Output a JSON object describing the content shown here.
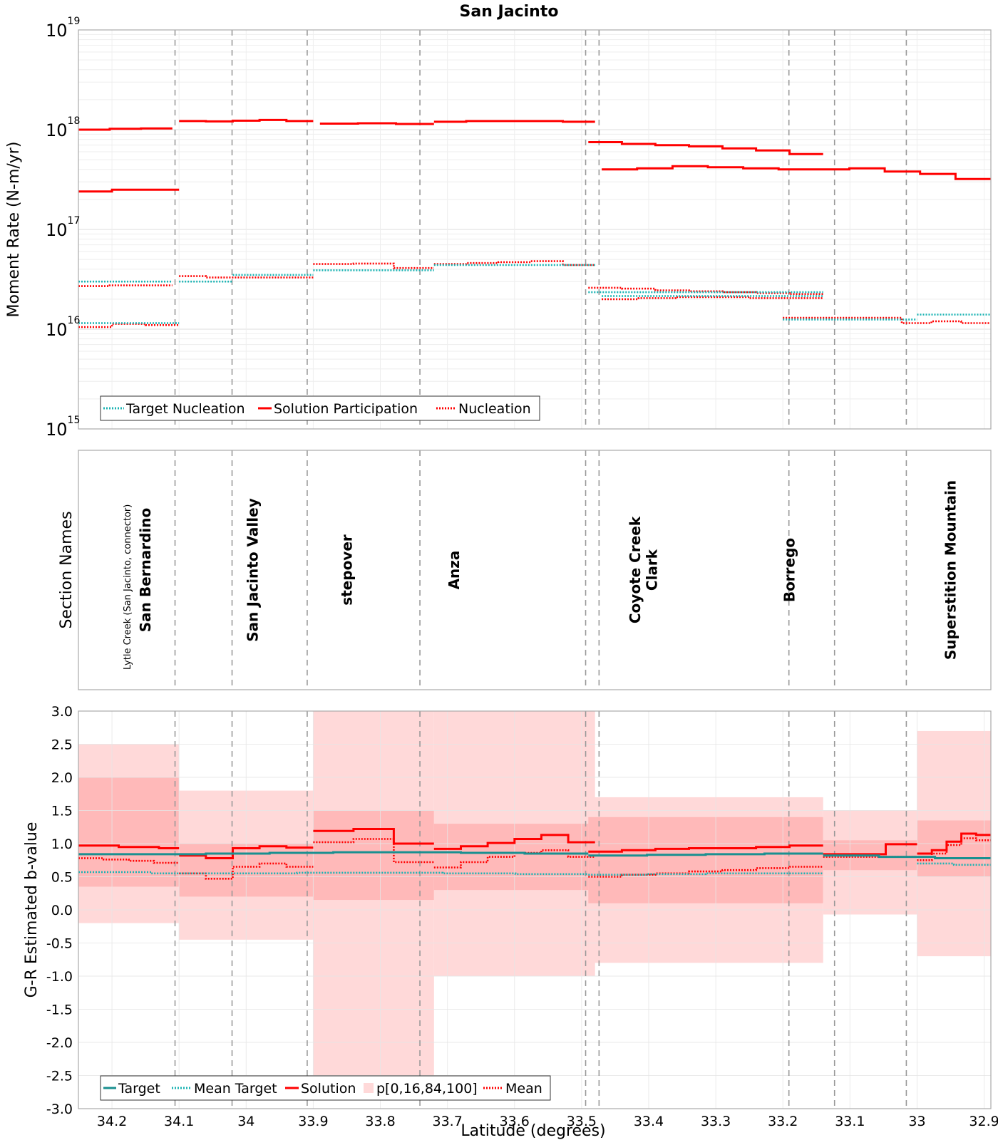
{
  "chart_data": [
    {
      "panel": "moment-rate",
      "type": "line",
      "title": "San Jacinto",
      "ylabel": "Moment Rate (N-m/yr)",
      "xlabel": "",
      "yscale": "log",
      "ylim": [
        1000000000000000.0,
        1e+19
      ],
      "xlim": [
        34.25,
        32.89
      ],
      "x_reversed": true,
      "y_ticks": [
        {
          "base": "10",
          "exp": "15",
          "value": 1000000000000000.0
        },
        {
          "base": "10",
          "exp": "16",
          "value": 1e+16
        },
        {
          "base": "10",
          "exp": "17",
          "value": 1e+17
        },
        {
          "base": "10",
          "exp": "18",
          "value": 1e+18
        },
        {
          "base": "10",
          "exp": "19",
          "value": 1e+19
        }
      ],
      "grid": true,
      "legend": {
        "position": "bottom-left",
        "entries": [
          {
            "label": "Target Nucleation",
            "style": "dotted",
            "color": "#1ab3b3"
          },
          {
            "label": "Solution Participation",
            "style": "solid",
            "color": "#ff0000"
          },
          {
            "label": "Nucleation",
            "style": "dotted",
            "color": "#ff0000"
          }
        ]
      },
      "series": [
        {
          "name": "Solution Participation",
          "style": "solid",
          "color": "#ff0000",
          "segments": [
            {
              "x0": 34.25,
              "x1": 34.11,
              "y": [
                1e+18,
                1.02e+18,
                1.03e+18
              ]
            },
            {
              "x0": 34.25,
              "x1": 34.1,
              "y": [
                2.4e+17,
                2.5e+17,
                2.5e+17
              ]
            },
            {
              "x0": 34.1,
              "x1": 33.9,
              "y": [
                1.22e+18,
                1.21e+18,
                1.23e+18,
                1.25e+18,
                1.22e+18
              ]
            },
            {
              "x0": 33.89,
              "x1": 33.72,
              "y": [
                1.15e+18,
                1.16e+18,
                1.14e+18
              ]
            },
            {
              "x0": 33.72,
              "x1": 33.48,
              "y": [
                1.2e+18,
                1.22e+18,
                1.22e+18,
                1.22e+18,
                1.2e+18
              ]
            },
            {
              "x0": 33.49,
              "x1": 33.14,
              "y": [
                7.5e+17,
                7.2e+17,
                7e+17,
                6.8e+17,
                6.5e+17,
                6.2e+17,
                5.7e+17
              ]
            },
            {
              "x0": 33.47,
              "x1": 32.89,
              "y": [
                4e+17,
                4.1e+17,
                4.3e+17,
                4.2e+17,
                4.1e+17,
                4e+17,
                4e+17,
                4.1e+17,
                3.8e+17,
                3.6e+17,
                3.2e+17
              ]
            }
          ]
        },
        {
          "name": "Nucleation",
          "style": "dotted",
          "color": "#ff0000",
          "segments": [
            {
              "x0": 34.25,
              "x1": 34.11,
              "y": [
                2.7e+16,
                2.75e+16,
                2.75e+16
              ]
            },
            {
              "x0": 34.25,
              "x1": 34.1,
              "y": [
                1.05e+16,
                1.13e+16,
                1.1e+16
              ]
            },
            {
              "x0": 34.1,
              "x1": 33.9,
              "y": [
                3.4e+16,
                3.3e+16,
                3.3e+16,
                3.3e+16,
                3.3e+16
              ]
            },
            {
              "x0": 33.9,
              "x1": 33.72,
              "y": [
                4.5e+16,
                4.55e+16,
                4.1e+16
              ]
            },
            {
              "x0": 33.72,
              "x1": 33.48,
              "y": [
                4.5e+16,
                4.6e+16,
                4.7e+16,
                4.8e+16,
                4.4e+16
              ]
            },
            {
              "x0": 33.49,
              "x1": 33.14,
              "y": [
                2.6e+16,
                2.55e+16,
                2.45e+16,
                2.4e+16,
                2.35e+16,
                2.3e+16,
                2.25e+16
              ]
            },
            {
              "x0": 33.47,
              "x1": 33.14,
              "y": [
                2e+16,
                2.05e+16,
                2.1e+16,
                2.1e+16,
                2.05e+16,
                2.05e+16
              ]
            },
            {
              "x0": 33.2,
              "x1": 32.89,
              "y": [
                1.3e+16,
                1.3e+16,
                1.3e+16,
                1.3e+16,
                1.15e+16,
                1.2e+16,
                1.15e+16
              ]
            }
          ]
        },
        {
          "name": "Target Nucleation",
          "style": "dotted",
          "color": "#1ab3b3",
          "segments": [
            {
              "x0": 34.25,
              "x1": 34.11,
              "y": [
                3e+16
              ]
            },
            {
              "x0": 34.25,
              "x1": 34.1,
              "y": [
                1.15e+16
              ]
            },
            {
              "x0": 34.1,
              "x1": 34.02,
              "y": [
                3e+16
              ]
            },
            {
              "x0": 34.02,
              "x1": 33.9,
              "y": [
                3.5e+16
              ]
            },
            {
              "x0": 33.9,
              "x1": 33.72,
              "y": [
                3.9e+16
              ]
            },
            {
              "x0": 33.72,
              "x1": 33.48,
              "y": [
                4.4e+16
              ]
            },
            {
              "x0": 33.49,
              "x1": 33.14,
              "y": [
                2.35e+16
              ]
            },
            {
              "x0": 33.47,
              "x1": 33.14,
              "y": [
                2.15e+16
              ]
            },
            {
              "x0": 33.2,
              "x1": 33.0,
              "y": [
                1.25e+16
              ]
            },
            {
              "x0": 33.0,
              "x1": 32.89,
              "y": [
                1.4e+16
              ]
            }
          ]
        }
      ]
    },
    {
      "panel": "section-names",
      "type": "table",
      "ylabel": "Section Names",
      "sections": [
        {
          "name": "Lytle Creek (San Jacinto, connector)",
          "x": 34.18,
          "small": true
        },
        {
          "name": "San Bernardino",
          "x": 34.15,
          "small": false
        },
        {
          "name": "San Jacinto Valley",
          "x": 33.99,
          "small": false
        },
        {
          "name": "stepover",
          "x": 33.85,
          "small": false
        },
        {
          "name": "Anza",
          "x": 33.69,
          "small": false
        },
        {
          "name": "Coyote Creek",
          "x": 33.42,
          "small": false
        },
        {
          "name": "Clark",
          "x": 33.395,
          "small": false
        },
        {
          "name": "Borrego",
          "x": 33.19,
          "small": false
        },
        {
          "name": "Superstition Mountain",
          "x": 32.95,
          "small": false
        }
      ]
    },
    {
      "panel": "b-value",
      "type": "line",
      "title": "",
      "ylabel": "G-R Estimated b-value",
      "xlabel": "Latitude (degrees)",
      "ylim": [
        -3.0,
        3.0
      ],
      "xlim": [
        34.25,
        32.89
      ],
      "x_reversed": true,
      "y_ticks": [
        "3.0",
        "2.5",
        "2.0",
        "1.5",
        "1.0",
        "0.5",
        "0.0",
        "-0.5",
        "-1.0",
        "-1.5",
        "-2.0",
        "-2.5",
        "-3.0"
      ],
      "grid": true,
      "legend": {
        "position": "bottom-left",
        "entries": [
          {
            "label": "Target",
            "style": "solid",
            "color": "#1a9090"
          },
          {
            "label": "Mean Target",
            "style": "dotted",
            "color": "#1ab3b3"
          },
          {
            "label": "Solution",
            "style": "solid",
            "color": "#ff0000"
          },
          {
            "label": "p[0,16,84,100]",
            "style": "fill",
            "color": "#ffd9d9"
          },
          {
            "label": "Mean",
            "style": "dotted",
            "color": "#ff0000"
          }
        ]
      },
      "bands": [
        {
          "x0": 34.25,
          "x1": 34.1,
          "p0": -0.2,
          "p16": 0.35,
          "p84": 2.0,
          "p100": 2.5
        },
        {
          "x0": 34.1,
          "x1": 33.9,
          "p0": -0.45,
          "p16": 0.2,
          "p84": 1.0,
          "p100": 1.8
        },
        {
          "x0": 33.9,
          "x1": 33.72,
          "p0": -2.8,
          "p16": 0.15,
          "p84": 1.5,
          "p100": 3.0
        },
        {
          "x0": 33.72,
          "x1": 33.48,
          "p0": -1.0,
          "p16": 0.3,
          "p84": 1.3,
          "p100": 3.0
        },
        {
          "x0": 33.49,
          "x1": 33.14,
          "p0": -0.8,
          "p16": 0.1,
          "p84": 1.4,
          "p100": 1.7
        },
        {
          "x0": 33.14,
          "x1": 33.0,
          "p0": -0.07,
          "p16": 0.6,
          "p84": 1.05,
          "p100": 1.5
        },
        {
          "x0": 33.0,
          "x1": 32.89,
          "p0": -0.7,
          "p16": 0.5,
          "p84": 1.35,
          "p100": 2.7
        }
      ],
      "series": [
        {
          "name": "Solution",
          "style": "solid",
          "color": "#ff0000",
          "segments": [
            {
              "x0": 34.25,
              "x1": 34.1,
              "y": [
                0.97,
                0.97,
                0.95,
                0.95,
                0.93
              ]
            },
            {
              "x0": 34.1,
              "x1": 33.9,
              "y": [
                0.82,
                0.78,
                0.93,
                0.96,
                0.94
              ]
            },
            {
              "x0": 33.9,
              "x1": 33.72,
              "y": [
                1.19,
                1.22,
                1.0
              ]
            },
            {
              "x0": 33.72,
              "x1": 33.48,
              "y": [
                0.92,
                0.96,
                1.01,
                1.07,
                1.13,
                1.02
              ]
            },
            {
              "x0": 33.49,
              "x1": 33.14,
              "y": [
                0.88,
                0.9,
                0.92,
                0.93,
                0.93,
                0.95,
                0.97
              ]
            },
            {
              "x0": 33.14,
              "x1": 33.0,
              "y": [
                0.84,
                0.84,
                0.99
              ]
            },
            {
              "x0": 33.0,
              "x1": 32.89,
              "y": [
                0.85,
                0.9,
                1.03,
                1.15,
                1.13
              ]
            }
          ]
        },
        {
          "name": "Mean",
          "style": "dotted",
          "color": "#ff0000",
          "segments": [
            {
              "x0": 34.25,
              "x1": 34.1,
              "y": [
                0.78,
                0.76,
                0.74,
                0.71
              ]
            },
            {
              "x0": 34.1,
              "x1": 33.9,
              "y": [
                0.55,
                0.47,
                0.65,
                0.7,
                0.65
              ]
            },
            {
              "x0": 33.9,
              "x1": 33.72,
              "y": [
                1.02,
                1.07,
                0.72
              ]
            },
            {
              "x0": 33.72,
              "x1": 33.48,
              "y": [
                0.64,
                0.72,
                0.8,
                0.86,
                0.9,
                0.8
              ]
            },
            {
              "x0": 33.49,
              "x1": 33.14,
              "y": [
                0.5,
                0.53,
                0.55,
                0.58,
                0.6,
                0.63,
                0.65
              ]
            },
            {
              "x0": 33.14,
              "x1": 33.0,
              "y": [
                0.8,
                0.8,
                0.8
              ]
            },
            {
              "x0": 33.0,
              "x1": 32.89,
              "y": [
                0.75,
                0.85,
                0.98,
                1.08,
                1.05
              ]
            }
          ]
        },
        {
          "name": "Target",
          "style": "solid",
          "color": "#1a9090",
          "segments": [
            {
              "x0": 34.25,
              "x1": 33.49,
              "y": [
                0.84,
                0.84,
                0.85,
                0.86,
                0.87,
                0.87,
                0.86,
                0.85
              ]
            },
            {
              "x0": 33.49,
              "x1": 33.14,
              "y": [
                0.82,
                0.83,
                0.84,
                0.85
              ]
            },
            {
              "x0": 33.14,
              "x1": 32.89,
              "y": [
                0.82,
                0.8,
                0.78
              ]
            }
          ]
        },
        {
          "name": "Mean Target",
          "style": "dotted",
          "color": "#1ab3b3",
          "segments": [
            {
              "x0": 34.25,
              "x1": 33.49,
              "y": [
                0.57,
                0.55,
                0.55,
                0.56,
                0.56,
                0.55,
                0.54
              ]
            },
            {
              "x0": 33.49,
              "x1": 33.14,
              "y": [
                0.53,
                0.54,
                0.55,
                0.55
              ]
            },
            {
              "x0": 33.0,
              "x1": 32.89,
              "y": [
                0.7,
                0.68
              ]
            }
          ]
        }
      ]
    }
  ],
  "x_axis": {
    "label": "Latitude (degrees)",
    "ticks": [
      {
        "label": "34.2",
        "value": 34.2
      },
      {
        "label": "34.1",
        "value": 34.1
      },
      {
        "label": "34",
        "value": 34.0
      },
      {
        "label": "33.9",
        "value": 33.9
      },
      {
        "label": "33.8",
        "value": 33.8
      },
      {
        "label": "33.7",
        "value": 33.7
      },
      {
        "label": "33.6",
        "value": 33.6
      },
      {
        "label": "33.5",
        "value": 33.5
      },
      {
        "label": "33.4",
        "value": 33.4
      },
      {
        "label": "33.3",
        "value": 33.3
      },
      {
        "label": "33.2",
        "value": 33.2
      },
      {
        "label": "33.1",
        "value": 33.1
      },
      {
        "label": "33",
        "value": 33.0
      },
      {
        "label": "32.9",
        "value": 32.9
      }
    ]
  },
  "section_boundaries": [
    34.106,
    34.021,
    33.909,
    33.741,
    33.494,
    33.474,
    33.191,
    33.123,
    33.016
  ],
  "colors": {
    "solution": "#ff0000",
    "target": "#1a9090",
    "target_dotted": "#1ab3b3",
    "band_outer": "#ffd9d9",
    "band_inner": "#ffb3b3",
    "grid": "#e6e6e6",
    "boundary": "#999999"
  }
}
